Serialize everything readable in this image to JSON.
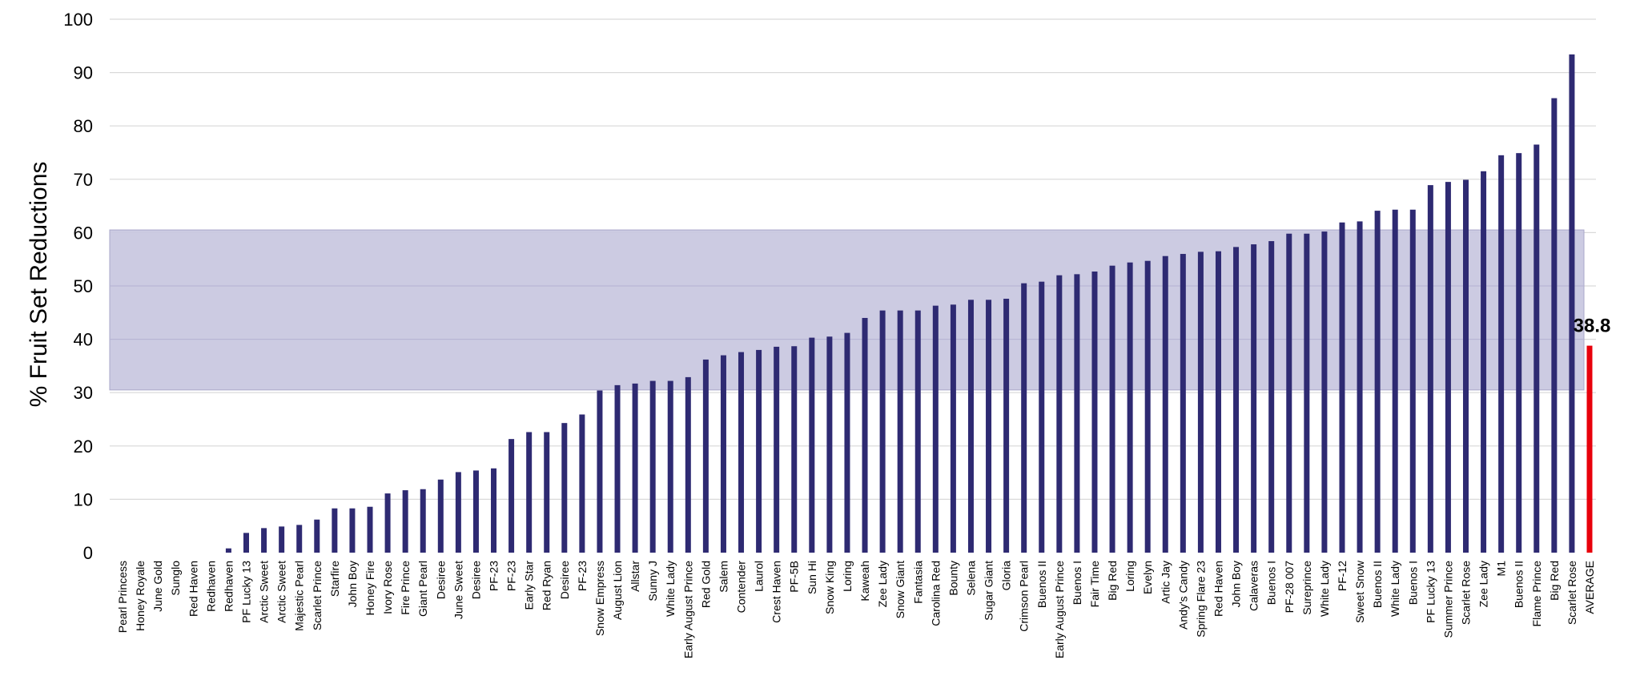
{
  "chart_data": {
    "type": "bar",
    "ylabel": "% Fruit Set Reductions",
    "xlabel": "",
    "ylim": [
      0,
      100
    ],
    "yticks": [
      0,
      10,
      20,
      30,
      40,
      50,
      60,
      70,
      80,
      90,
      100
    ],
    "grid": true,
    "band": [
      30.5,
      60.5
    ],
    "colors": {
      "bar": "#2e2a72",
      "highlight": "#e8000b",
      "band": "#c9c8e0",
      "grid": "#d9d9d9"
    },
    "categories": [
      "Pearl Princess",
      "Honey Royale",
      "June Gold",
      "Sunglo",
      "Red Haven",
      "Redhaven",
      "Redhaven",
      "PF Lucky 13",
      "Arctic Sweet",
      "Arctic Sweet",
      "Majestic Pearl",
      "Scarlet Prince",
      "Starfire",
      "John Boy",
      "Honey Fire",
      "Ivory Rose",
      "Fire Prince",
      "Giant Pearl",
      "Desiree",
      "June Sweet",
      "Desiree",
      "PF-23",
      "PF-23",
      "Early Star",
      "Red Ryan",
      "Desiree",
      "PF-23",
      "Snow Empress",
      "August Lion",
      "Allstar",
      "Sunny J",
      "White Lady",
      "Early August Prince",
      "Red Gold",
      "Salem",
      "Contender",
      "Laurol",
      "Crest Haven",
      "PF-5B",
      "Sun Hi",
      "Snow King",
      "Loring",
      "Kaweah",
      "Zee Lady",
      "Snow Giant",
      "Fantasia",
      "Carolina Red",
      "Bounty",
      "Selena",
      "Sugar Giant",
      "Gloria",
      "Crimson Pearl",
      "Buenos II",
      "Early August Prince",
      "Buenos I",
      "Fair Time",
      "Big Red",
      "Loring",
      "Evelyn",
      "Artic Jay",
      "Andy's Candy",
      "Spring Flare 23",
      "Red Haven",
      "John Boy",
      "Calaveras",
      "Buenos I",
      "PF-28 007",
      "Sureprince",
      "White Lady",
      "PF-12",
      "Sweet Snow",
      "Buenos II",
      "White Lady",
      "Buenos I",
      "PF Lucky 13",
      "Summer Prince",
      "Scarlet Rose",
      "Zee Lady",
      "M1",
      "Buenos II",
      "Flame Prince",
      "Big Red",
      "Scarlet Rose",
      "AVERAGE"
    ],
    "values": [
      0,
      0,
      0,
      0,
      0,
      0,
      0.8,
      3.7,
      4.6,
      4.9,
      5.2,
      6.2,
      8.3,
      8.3,
      8.6,
      11.1,
      11.7,
      11.9,
      13.7,
      15.1,
      15.4,
      15.8,
      21.3,
      22.6,
      22.6,
      24.3,
      25.9,
      30.4,
      31.4,
      31.7,
      32.2,
      32.2,
      32.9,
      36.2,
      37.0,
      37.6,
      38.0,
      38.6,
      38.7,
      40.3,
      40.5,
      41.2,
      44.0,
      45.4,
      45.4,
      45.4,
      46.3,
      46.5,
      47.4,
      47.4,
      47.6,
      50.5,
      50.8,
      52.0,
      52.2,
      52.7,
      53.8,
      54.4,
      54.7,
      55.6,
      56.0,
      56.4,
      56.5,
      57.3,
      57.8,
      58.4,
      59.8,
      59.8,
      60.2,
      61.9,
      62.1,
      64.1,
      64.3,
      64.3,
      68.9,
      69.5,
      69.9,
      71.5,
      74.5,
      74.9,
      76.5,
      85.2,
      93.4,
      38.8
    ],
    "highlight_index": 83,
    "data_labels": [
      {
        "index": 83,
        "text": "38.8"
      }
    ]
  }
}
